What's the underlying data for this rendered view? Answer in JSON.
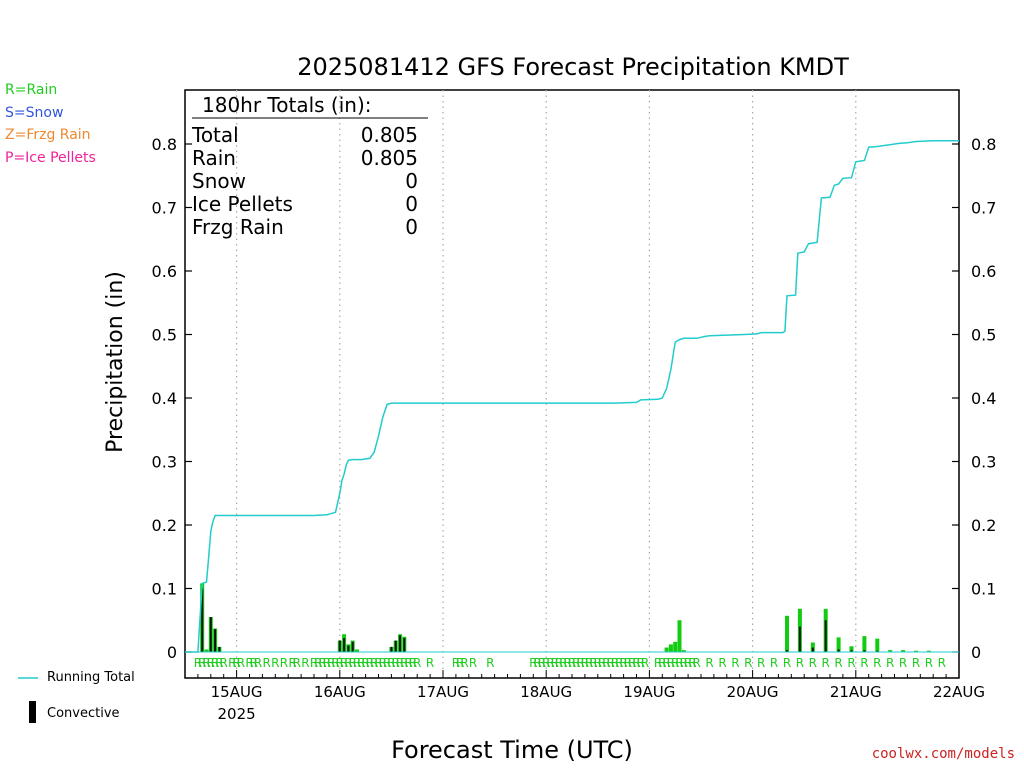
{
  "legend_precip_types": [
    {
      "text": "R=Rain",
      "color": "#22cc22"
    },
    {
      "text": "S=Snow",
      "color": "#3355dd"
    },
    {
      "text": "Z=Frzg Rain",
      "color": "#ee8833"
    },
    {
      "text": "P=Ice Pellets",
      "color": "#ee2299"
    }
  ],
  "bottom_legend": {
    "running_total": "Running Total",
    "convective": "Convective"
  },
  "credit": "coolwx.com/models",
  "totals_box": {
    "header": "180hr Totals (in):",
    "rows": [
      {
        "label": "Total",
        "value": "0.805"
      },
      {
        "label": "Rain",
        "value": "0.805"
      },
      {
        "label": "Snow",
        "value": "0"
      },
      {
        "label": "Ice Pellets",
        "value": "0"
      },
      {
        "label": "Frzg Rain",
        "value": "0"
      }
    ]
  },
  "chart_data": {
    "type": "bar",
    "title": "2025081412 GFS Forecast Precipitation KMDT",
    "xlabel": "Forecast Time (UTC)",
    "ylabel": "Precipitation (in)",
    "ylim": [
      0,
      0.88
    ],
    "yticks": [
      0,
      0.1,
      0.2,
      0.3,
      0.4,
      0.5,
      0.6,
      0.7,
      0.8
    ],
    "ytick_labels": [
      "0",
      "0.1",
      "0.2",
      "0.3",
      "0.4",
      "0.5",
      "0.6",
      "0.7",
      "0.8"
    ],
    "x_unit": "forecast hour",
    "xlim": [
      0,
      180
    ],
    "xticks": [
      {
        "hour": 12,
        "label": "15AUG",
        "sublabel": "2025"
      },
      {
        "hour": 36,
        "label": "16AUG"
      },
      {
        "hour": 60,
        "label": "17AUG"
      },
      {
        "hour": 84,
        "label": "18AUG"
      },
      {
        "hour": 108,
        "label": "19AUG"
      },
      {
        "hour": 132,
        "label": "20AUG"
      },
      {
        "hour": 156,
        "label": "21AUG"
      },
      {
        "hour": 180,
        "label": "22AUG"
      }
    ],
    "grid": "vertical dotted",
    "series": [
      {
        "name": "Running Total",
        "type": "line",
        "color": "#22cccc",
        "points": [
          [
            0,
            0
          ],
          [
            3,
            0
          ],
          [
            4,
            0.108
          ],
          [
            5,
            0.11
          ],
          [
            5.5,
            0.15
          ],
          [
            6,
            0.19
          ],
          [
            6.5,
            0.205
          ],
          [
            7,
            0.215
          ],
          [
            10,
            0.215
          ],
          [
            20,
            0.215
          ],
          [
            30,
            0.215
          ],
          [
            33,
            0.216
          ],
          [
            35,
            0.22
          ],
          [
            36,
            0.25
          ],
          [
            36.5,
            0.27
          ],
          [
            37,
            0.28
          ],
          [
            37.5,
            0.295
          ],
          [
            38,
            0.302
          ],
          [
            39,
            0.303
          ],
          [
            41,
            0.303
          ],
          [
            43,
            0.305
          ],
          [
            44,
            0.315
          ],
          [
            45,
            0.34
          ],
          [
            46,
            0.37
          ],
          [
            47,
            0.39
          ],
          [
            48,
            0.392
          ],
          [
            60,
            0.392
          ],
          [
            80,
            0.392
          ],
          [
            100,
            0.392
          ],
          [
            105,
            0.393
          ],
          [
            106,
            0.397
          ],
          [
            110,
            0.398
          ],
          [
            111,
            0.4
          ],
          [
            112,
            0.415
          ],
          [
            113,
            0.445
          ],
          [
            114,
            0.488
          ],
          [
            115,
            0.492
          ],
          [
            116,
            0.494
          ],
          [
            119,
            0.494
          ],
          [
            121,
            0.497
          ],
          [
            122,
            0.498
          ],
          [
            126,
            0.499
          ],
          [
            130,
            0.5
          ],
          [
            133,
            0.501
          ],
          [
            134,
            0.503
          ],
          [
            139,
            0.503
          ],
          [
            139.5,
            0.505
          ],
          [
            140,
            0.561
          ],
          [
            142,
            0.562
          ],
          [
            142.5,
            0.628
          ],
          [
            144,
            0.63
          ],
          [
            145,
            0.643
          ],
          [
            147,
            0.645
          ],
          [
            148,
            0.715
          ],
          [
            150,
            0.716
          ],
          [
            151,
            0.735
          ],
          [
            152,
            0.737
          ],
          [
            153,
            0.746
          ],
          [
            155,
            0.747
          ],
          [
            156,
            0.772
          ],
          [
            158,
            0.774
          ],
          [
            159,
            0.795
          ],
          [
            161,
            0.796
          ],
          [
            163,
            0.798
          ],
          [
            166,
            0.801
          ],
          [
            168,
            0.802
          ],
          [
            170,
            0.804
          ],
          [
            174,
            0.805
          ],
          [
            180,
            0.805
          ]
        ]
      },
      {
        "name": "Rain",
        "type": "bar",
        "color": "#11cc11",
        "points": [
          [
            4,
            0.108
          ],
          [
            5,
            0.004
          ],
          [
            6,
            0.055
          ],
          [
            7,
            0.037
          ],
          [
            8,
            0.008
          ],
          [
            36,
            0.018
          ],
          [
            37,
            0.028
          ],
          [
            38,
            0.012
          ],
          [
            39,
            0.018
          ],
          [
            40,
            0.004
          ],
          [
            48,
            0.008
          ],
          [
            49,
            0.018
          ],
          [
            50,
            0.028
          ],
          [
            51,
            0.024
          ],
          [
            112,
            0.007
          ],
          [
            113,
            0.012
          ],
          [
            114,
            0.016
          ],
          [
            115,
            0.05
          ],
          [
            116,
            0.003
          ],
          [
            140,
            0.057
          ],
          [
            143,
            0.068
          ],
          [
            146,
            0.015
          ],
          [
            149,
            0.068
          ],
          [
            152,
            0.023
          ],
          [
            155,
            0.009
          ],
          [
            158,
            0.025
          ],
          [
            161,
            0.021
          ],
          [
            164,
            0.003
          ],
          [
            167,
            0.003
          ],
          [
            170,
            0.002
          ],
          [
            173,
            0.002
          ]
        ]
      },
      {
        "name": "Convective",
        "type": "bar",
        "color": "#111111",
        "points": [
          [
            4,
            0.1
          ],
          [
            6,
            0.055
          ],
          [
            7,
            0.036
          ],
          [
            8,
            0.008
          ],
          [
            36,
            0.018
          ],
          [
            37,
            0.022
          ],
          [
            38,
            0.01
          ],
          [
            39,
            0.016
          ],
          [
            48,
            0.008
          ],
          [
            49,
            0.018
          ],
          [
            50,
            0.026
          ],
          [
            51,
            0.022
          ],
          [
            140,
            0.003
          ],
          [
            143,
            0.04
          ],
          [
            146,
            0.007
          ],
          [
            149,
            0.05
          ],
          [
            152,
            0.004
          ],
          [
            155,
            0.003
          ],
          [
            158,
            0.003
          ],
          [
            161,
            0.002
          ]
        ]
      }
    ],
    "precip_type_hours": [
      3,
      4,
      5,
      6,
      7,
      8,
      9,
      11,
      12,
      13,
      15,
      16,
      17,
      19,
      21,
      23,
      25,
      26,
      28,
      30,
      31,
      32,
      33,
      34,
      35,
      36,
      37,
      38,
      39,
      40,
      41,
      42,
      43,
      44,
      45,
      46,
      47,
      48,
      49,
      50,
      51,
      52,
      53,
      54,
      57,
      63,
      64,
      65,
      67,
      71,
      81,
      82,
      83,
      84,
      85,
      86,
      87,
      88,
      89,
      90,
      91,
      92,
      93,
      94,
      95,
      96,
      97,
      98,
      99,
      100,
      101,
      102,
      103,
      104,
      105,
      106,
      107,
      110,
      111,
      112,
      113,
      114,
      115,
      116,
      117,
      118,
      119,
      122,
      125,
      128,
      131,
      134,
      137,
      140,
      143,
      146,
      149,
      152,
      155,
      158,
      161,
      164,
      167,
      170,
      173,
      176
    ],
    "precip_type_letter": "R"
  }
}
